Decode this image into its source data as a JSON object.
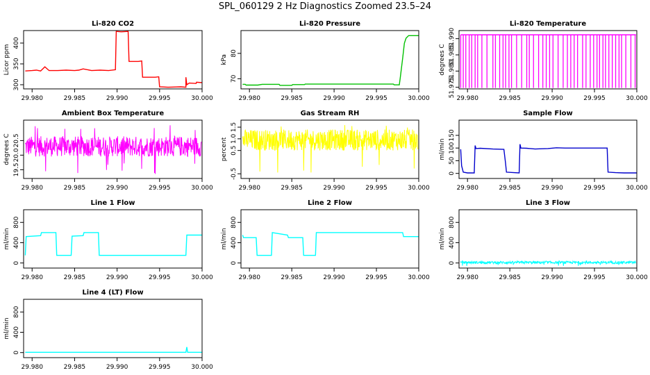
{
  "figure": {
    "title": "SPL_060129  2 Hz Diagnostics Zoomed 23.5–24"
  },
  "chart_data": [
    {
      "type": "line",
      "title": "Li-820 CO2",
      "ylabel": "Licor ppm",
      "color": "#ff0000",
      "xlim": [
        29.979,
        30.0
      ],
      "xticks": [
        "29.980",
        "29.985",
        "29.990",
        "29.995",
        "30.000"
      ],
      "ylim": [
        290,
        430
      ],
      "yticks": [
        "300",
        "350",
        "400"
      ],
      "series": [
        {
          "x": [
            29.9792,
            29.98,
            29.9805,
            29.981,
            29.9815,
            29.982,
            29.983,
            29.984,
            29.985,
            29.9855,
            29.986,
            29.987,
            29.988,
            29.989,
            29.9898,
            29.9899,
            29.9905,
            29.9913,
            29.9914,
            29.9925,
            29.9929,
            29.993,
            29.9945,
            29.9949,
            29.995,
            29.996,
            29.9975,
            29.9981,
            29.9981,
            29.9982,
            29.9985,
            29.9993,
            29.99935,
            30.0
          ],
          "y": [
            333,
            334,
            335,
            333,
            343,
            334,
            334,
            335,
            334,
            335,
            338,
            334,
            335,
            334,
            336,
            428,
            427,
            428,
            356,
            356,
            357,
            318,
            318,
            319,
            295,
            294,
            295,
            294,
            318,
            300,
            304,
            303,
            306,
            305
          ]
        }
      ]
    },
    {
      "type": "line",
      "title": "Li-820 Pressure",
      "ylabel": "kPa",
      "color": "#00c000",
      "xlim": [
        29.979,
        30.0
      ],
      "xticks": [
        "29.980",
        "29.985",
        "29.990",
        "29.995",
        "30.000"
      ],
      "ylim": [
        66,
        89
      ],
      "yticks": [
        "70",
        "80"
      ],
      "series": [
        {
          "x": [
            29.9792,
            29.9795,
            29.9796,
            29.981,
            29.9815,
            29.9835,
            29.9836,
            29.985,
            29.9851,
            29.9865,
            29.9866,
            29.989,
            29.9935,
            29.997,
            29.9971,
            29.9977,
            29.9978,
            29.9981,
            29.9983,
            29.9985,
            29.9988,
            30.0
          ],
          "y": [
            67.8,
            67.8,
            67.5,
            67.5,
            67.8,
            67.8,
            67.4,
            67.4,
            67.7,
            67.7,
            67.9,
            67.9,
            67.9,
            67.9,
            67.6,
            67.6,
            70,
            78,
            84,
            86,
            87,
            87
          ]
        }
      ]
    },
    {
      "type": "line",
      "title": "Li-820 Temperature",
      "ylabel": "degrees C",
      "color": "#ff00ff",
      "xlim": [
        29.979,
        30.0
      ],
      "xticks": [
        "29.980",
        "29.985",
        "29.990",
        "29.995",
        "30.000"
      ],
      "ylim": [
        51.9745,
        51.9925
      ],
      "yticks": [
        "51.975",
        "51.980",
        "51.985",
        "51.990"
      ],
      "high": 51.9912,
      "low": 51.9748,
      "drops": [
        29.9792,
        29.9795,
        29.9798,
        29.9802,
        29.9805,
        29.9809,
        29.9812,
        29.9817,
        29.9823,
        29.983,
        29.9833,
        29.9838,
        29.9842,
        29.9845,
        29.9849,
        29.9852,
        29.9858,
        29.9864,
        29.987,
        29.9873,
        29.9878,
        29.9884,
        29.9889,
        29.9893,
        29.9897,
        29.9901,
        29.9907,
        29.9913,
        29.9918,
        29.9922,
        29.9926,
        29.993,
        29.9936,
        29.994,
        29.9945,
        29.9949,
        29.9953,
        29.9956,
        29.996,
        29.9963,
        29.9967,
        29.9971,
        29.9975,
        29.9979,
        29.9982,
        29.9987,
        29.9993,
        29.9998
      ]
    },
    {
      "type": "line",
      "title": "Ambient Box Temperature",
      "ylabel": "degrees C",
      "color": "#ff00ff",
      "xlim": [
        29.979,
        30.0
      ],
      "xticks": [
        "29.980",
        "29.985",
        "29.990",
        "29.995",
        "30.000"
      ],
      "ylim": [
        19.2,
        21.2
      ],
      "yticks": [
        "19.5",
        "20.0",
        "20.5"
      ],
      "noise": {
        "center": 20.3,
        "amplitude": 0.35,
        "spikes_low": 19.35,
        "spikes_high": 21.05
      }
    },
    {
      "type": "line",
      "title": "Gas Stream RH",
      "ylabel": "percent",
      "color": "#ffff00",
      "xlim": [
        29.979,
        30.0
      ],
      "xticks": [
        "29.980",
        "29.985",
        "29.990",
        "29.995",
        "30.000"
      ],
      "ylim": [
        -0.7,
        1.8
      ],
      "yticks": [
        "-0.5",
        "0.5",
        "1.0",
        "1.5"
      ],
      "noise": {
        "center": 0.95,
        "amplitude": 0.45,
        "spikes_low": -0.55,
        "spikes_high": 1.7
      }
    },
    {
      "type": "line",
      "title": "Sample Flow",
      "ylabel": "ml/min",
      "color": "#0000cc",
      "xlim": [
        29.979,
        30.0
      ],
      "xticks": [
        "29.980",
        "29.985",
        "29.990",
        "29.995",
        "30.000"
      ],
      "ylim": [
        -20,
        210
      ],
      "yticks": [
        "0",
        "50",
        "100",
        "150"
      ],
      "series": [
        {
          "x": [
            29.9792,
            29.9793,
            29.9795,
            29.98,
            29.9808,
            29.9809,
            29.981,
            29.9815,
            29.983,
            29.9843,
            29.9845,
            29.9846,
            29.9855,
            29.9861,
            29.9862,
            29.9863,
            29.987,
            29.988,
            29.9885,
            29.9895,
            29.9905,
            29.9915,
            29.9965,
            29.9966,
            29.9975,
            29.9985,
            30.0
          ],
          "y": [
            95,
            30,
            5,
            2,
            2,
            110,
            98,
            99,
            96,
            95,
            40,
            5,
            3,
            2,
            115,
            100,
            99,
            96,
            97,
            98,
            101,
            100,
            100,
            5,
            3,
            2,
            2
          ]
        }
      ]
    },
    {
      "type": "line",
      "title": "Line 1 Flow",
      "ylabel": "ml/min",
      "color": "#00ffff",
      "xlim": [
        29.979,
        30.0
      ],
      "xticks": [
        "29.980",
        "29.985",
        "29.990",
        "29.995",
        "30.000"
      ],
      "ylim": [
        -100,
        1050
      ],
      "yticks": [
        "0",
        "400",
        "800"
      ],
      "series": [
        {
          "x": [
            29.9792,
            29.9793,
            29.981,
            29.9811,
            29.9828,
            29.9829,
            29.9846,
            29.9847,
            29.986,
            29.9861,
            29.9878,
            29.9879,
            29.9945,
            29.9981,
            29.9982,
            30.0
          ],
          "y": [
            150,
            520,
            540,
            600,
            600,
            150,
            150,
            530,
            540,
            600,
            600,
            150,
            150,
            150,
            550,
            550
          ]
        }
      ]
    },
    {
      "type": "line",
      "title": "Line 2 Flow",
      "ylabel": "ml/min",
      "color": "#00ffff",
      "xlim": [
        29.979,
        30.0
      ],
      "xticks": [
        "29.980",
        "29.985",
        "29.990",
        "29.995",
        "30.000"
      ],
      "ylim": [
        -100,
        1050
      ],
      "yticks": [
        "0",
        "400",
        "800"
      ],
      "series": [
        {
          "x": [
            29.9792,
            29.9793,
            29.9808,
            29.9809,
            29.9826,
            29.9827,
            29.9845,
            29.9846,
            29.9863,
            29.9864,
            29.9878,
            29.9879,
            29.9981,
            29.9982,
            30.0
          ],
          "y": [
            550,
            500,
            500,
            150,
            150,
            600,
            550,
            500,
            500,
            150,
            150,
            600,
            600,
            520,
            520
          ]
        }
      ]
    },
    {
      "type": "line",
      "title": "Line 3 Flow",
      "ylabel": "ml/min",
      "color": "#00ffff",
      "xlim": [
        29.979,
        30.0
      ],
      "xticks": [
        "29.980",
        "29.985",
        "29.990",
        "29.995",
        "30.000"
      ],
      "ylim": [
        -100,
        1050
      ],
      "yticks": [
        "0",
        "400",
        "800"
      ],
      "noise": {
        "center": 10,
        "amplitude": 25,
        "spikes_low": -60,
        "spikes_high": 50
      }
    },
    {
      "type": "line",
      "title": "Line 4 (LT) Flow",
      "ylabel": "ml/min",
      "color": "#00ffff",
      "xlim": [
        29.979,
        30.0
      ],
      "xticks": [
        "29.980",
        "29.985",
        "29.990",
        "29.995",
        "30.000"
      ],
      "ylim": [
        -100,
        1050
      ],
      "yticks": [
        "0",
        "400",
        "800"
      ],
      "series": [
        {
          "x": [
            29.9792,
            29.9981,
            29.9982,
            29.9983,
            29.9984,
            30.0
          ],
          "y": [
            5,
            5,
            110,
            5,
            5,
            5
          ]
        }
      ]
    }
  ]
}
